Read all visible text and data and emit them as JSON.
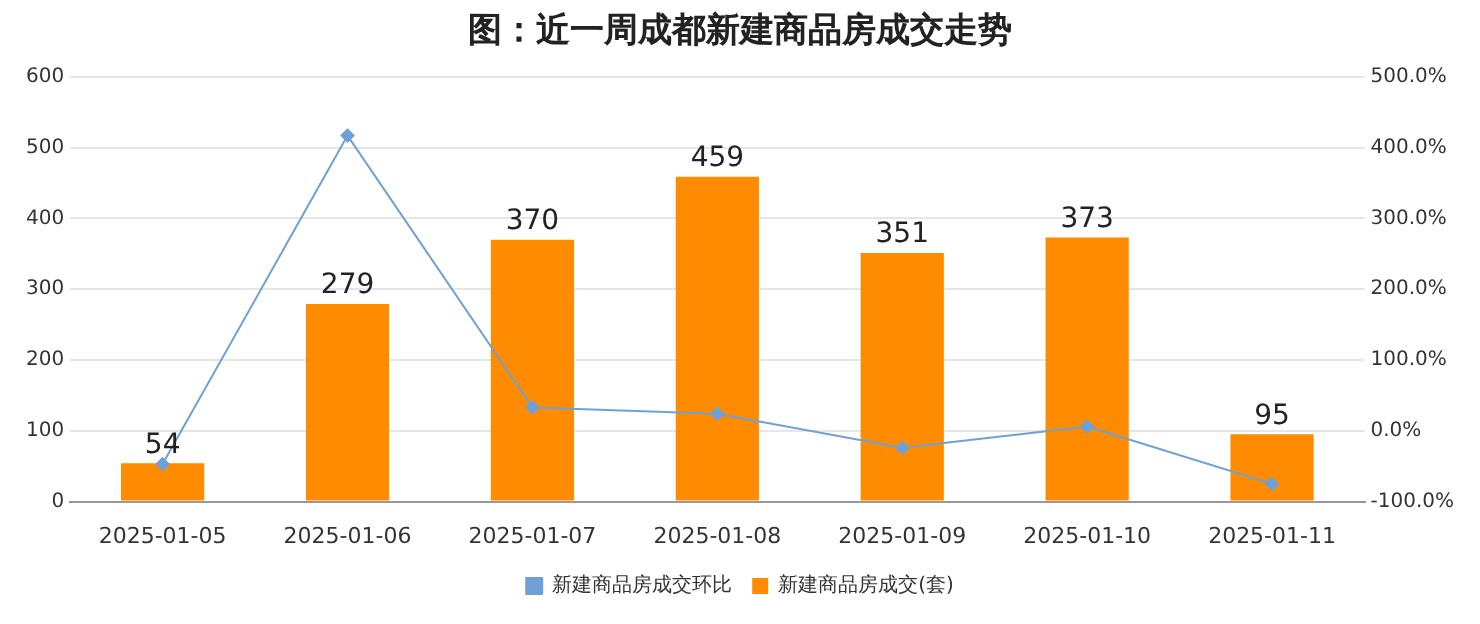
{
  "chart_data": {
    "type": "bar",
    "title": "图：近一周成都新建商品房成交走势",
    "categories": [
      "2025-01-05",
      "2025-01-06",
      "2025-01-07",
      "2025-01-08",
      "2025-01-09",
      "2025-01-10",
      "2025-01-11"
    ],
    "series": [
      {
        "name": "新建商品房成交(套)",
        "color": "#ff8c00",
        "values": [
          54,
          279,
          370,
          459,
          351,
          373,
          95
        ],
        "data_labels": true
      },
      {
        "name": "新建商品房成交环比",
        "type": "line",
        "axis": "y2",
        "color": "#6fa0d8",
        "marker": "diamond",
        "values": [
          -47,
          417,
          33,
          24,
          -24,
          6,
          -75
        ]
      }
    ],
    "ylim": [
      0,
      600
    ],
    "yticks": [
      0,
      100,
      200,
      300,
      400,
      500,
      600
    ],
    "y2lim": [
      -100,
      500
    ],
    "y2ticks": [
      {
        "value": -100,
        "label": "-100.0%"
      },
      {
        "value": 0,
        "label": "0.0%"
      },
      {
        "value": 100,
        "label": "100.0%"
      },
      {
        "value": 200,
        "label": "200.0%"
      },
      {
        "value": 300,
        "label": "300.0%"
      },
      {
        "value": 400,
        "label": "400.0%"
      },
      {
        "value": 500,
        "label": "500.0%"
      }
    ],
    "grid": "y",
    "legend": "bottom"
  }
}
